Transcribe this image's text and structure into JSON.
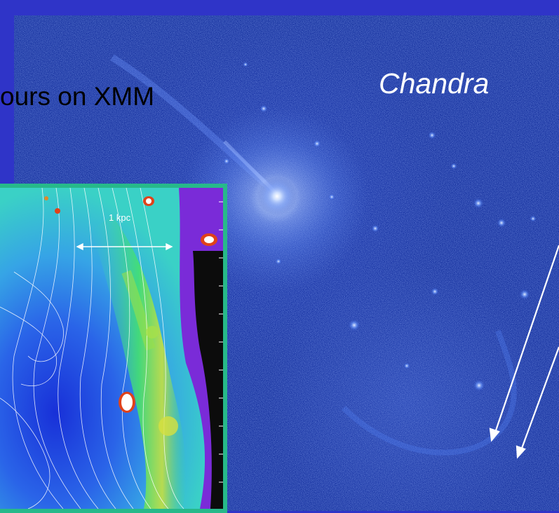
{
  "labels": {
    "chandra": "Chandra",
    "xmm_caption": "ours on XMM",
    "scale_bar": "1 kpc"
  },
  "colors": {
    "outer_frame": "#2f34c8",
    "chandra_background": "#0f2a9a",
    "xmm_border": "#27b98a",
    "arrow": "#ffffff"
  }
}
